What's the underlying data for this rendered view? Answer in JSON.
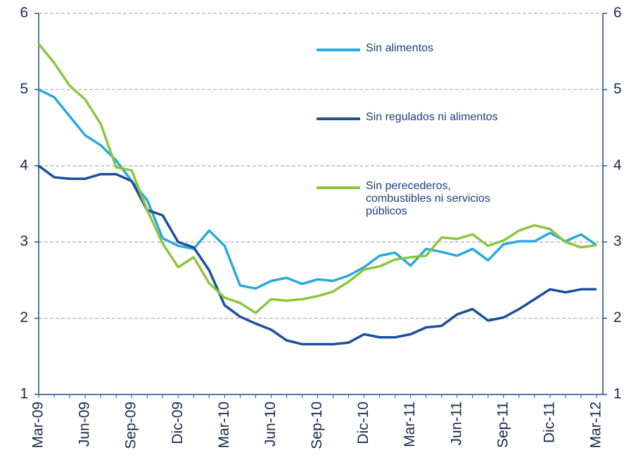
{
  "chart_data": {
    "type": "line",
    "categories": [
      "Mar-09",
      null,
      null,
      "Jun-09",
      null,
      null,
      "Sep-09",
      null,
      null,
      "Dic-09",
      null,
      null,
      "Mar-10",
      null,
      null,
      "Jun-10",
      null,
      null,
      "Sep-10",
      null,
      null,
      "Dic-10",
      null,
      null,
      "Mar-11",
      null,
      null,
      "Jun-11",
      null,
      null,
      "Sep-11",
      null,
      null,
      "Dic-11",
      null,
      null,
      "Mar-12"
    ],
    "series": [
      {
        "name": "Sin alimentos",
        "color": "#29a8e0",
        "values": [
          5.0,
          4.9,
          4.65,
          4.4,
          4.27,
          4.07,
          3.8,
          3.55,
          3.05,
          2.95,
          2.91,
          3.15,
          2.95,
          2.43,
          2.39,
          2.49,
          2.53,
          2.45,
          2.51,
          2.49,
          2.56,
          2.67,
          2.82,
          2.86,
          2.69,
          2.91,
          2.87,
          2.82,
          2.91,
          2.76,
          2.97,
          3.01,
          3.01,
          3.12,
          3.01,
          3.1,
          2.96
        ]
      },
      {
        "name": "Sin regulados ni alimentos",
        "color": "#1c4f9c",
        "values": [
          4.0,
          3.85,
          3.83,
          3.83,
          3.89,
          3.89,
          3.8,
          3.42,
          3.35,
          3.0,
          2.93,
          2.63,
          2.17,
          2.02,
          1.93,
          1.85,
          1.71,
          1.66,
          1.66,
          1.66,
          1.68,
          1.79,
          1.75,
          1.75,
          1.79,
          1.88,
          1.9,
          2.05,
          2.12,
          1.97,
          2.01,
          2.12,
          2.25,
          2.38,
          2.34,
          2.38,
          2.38
        ]
      },
      {
        "name": "Sin perecederos, combustibles ni servicios públicos",
        "color": "#8cc63f",
        "values": [
          5.6,
          5.35,
          5.05,
          4.87,
          4.55,
          3.98,
          3.94,
          3.42,
          2.98,
          2.67,
          2.8,
          2.46,
          2.27,
          2.2,
          2.07,
          2.25,
          2.23,
          2.25,
          2.29,
          2.35,
          2.48,
          2.64,
          2.68,
          2.77,
          2.8,
          2.82,
          3.06,
          3.04,
          3.1,
          2.95,
          3.02,
          3.15,
          3.22,
          3.17,
          3.0,
          2.93,
          2.96
        ]
      }
    ],
    "ylim": [
      1,
      6
    ],
    "yticks": [
      1,
      2,
      3,
      4,
      5,
      6
    ],
    "y2lim": [
      1,
      6
    ],
    "y2ticks": [
      1,
      2,
      3,
      4,
      5,
      6
    ],
    "grid": true
  }
}
